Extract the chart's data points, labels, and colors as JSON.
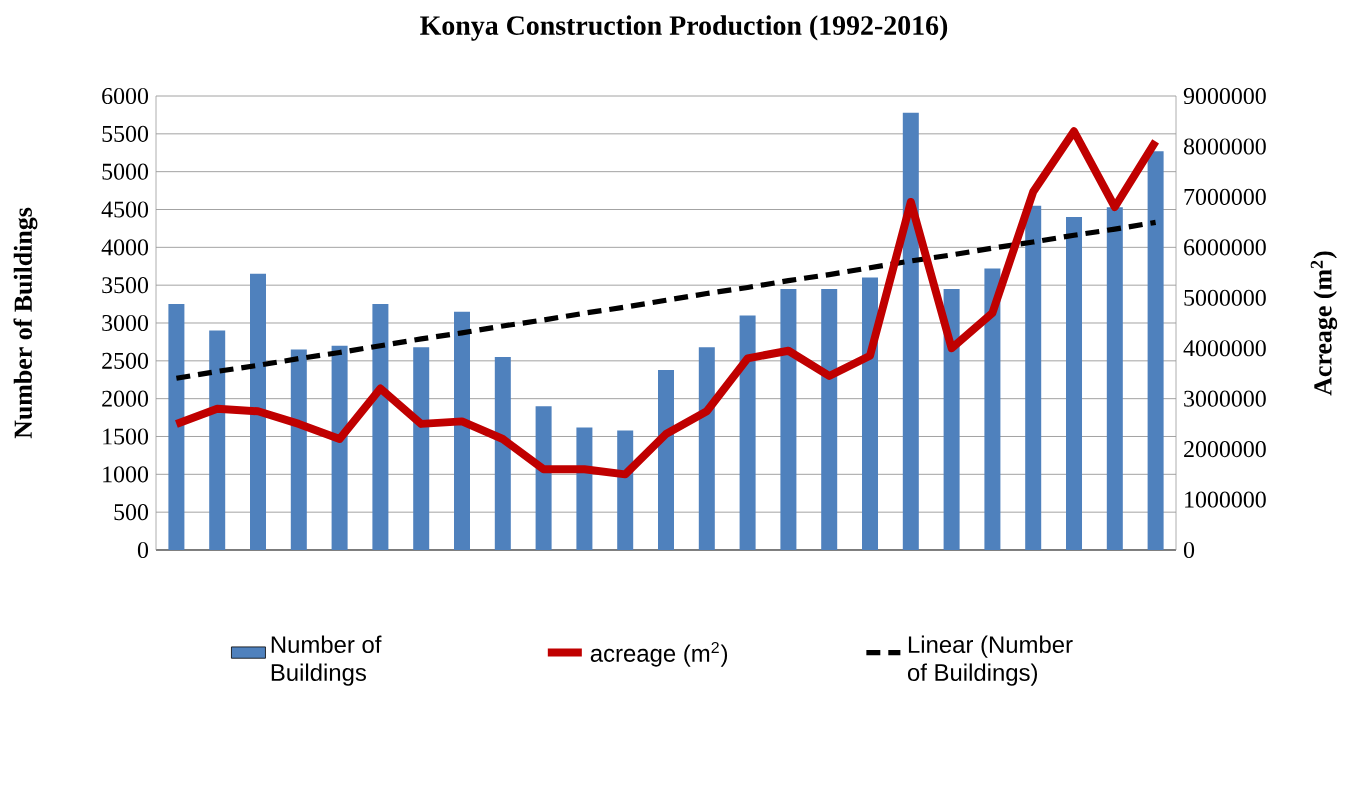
{
  "chart_data": {
    "type": "bar",
    "title": "Konya Construction Production  (1992-2016)",
    "ylabel": "Number of Buildings",
    "y2label": "Acreage (m$^{2}$)",
    "categories": [
      null,
      null,
      null,
      null,
      null,
      null,
      null,
      null,
      null,
      null,
      null,
      null,
      null,
      null,
      null,
      null,
      null,
      null,
      null,
      null,
      null,
      null,
      null,
      null,
      null
    ],
    "series": [
      {
        "name": "Number of Buildings",
        "color": "#4f81bd",
        "values": [
          3250,
          2900,
          3650,
          2650,
          2700,
          3250,
          2680,
          3150,
          2550,
          1900,
          1620,
          1580,
          2380,
          2680,
          3100,
          3450,
          3450,
          3600,
          5780,
          3450,
          3720,
          4550,
          4400,
          4530,
          5270
        ]
      },
      {
        "name": "acreage (m$^{2}$)",
        "type": "line",
        "axis": "y2",
        "color": "#c00000",
        "values": [
          2500000,
          2800000,
          2750000,
          2500000,
          2200000,
          3200000,
          2500000,
          2550000,
          2200000,
          1600000,
          1600000,
          1500000,
          2300000,
          2750000,
          3800000,
          3950000,
          3450000,
          3850000,
          6900000,
          4000000,
          4700000,
          7100000,
          8300000,
          6800000,
          8100000
        ]
      },
      {
        "name": "Linear (Number of Buildings)",
        "type": "line",
        "line_style": "dashed",
        "color": "#000000",
        "values": [
          2270,
          2360,
          2440,
          2530,
          2610,
          2700,
          2790,
          2870,
          2960,
          3040,
          3130,
          3210,
          3300,
          3390,
          3470,
          3560,
          3640,
          3730,
          3820,
          3900,
          3990,
          4070,
          4160,
          4240,
          4330
        ]
      }
    ],
    "ylim": [
      0,
      6000
    ],
    "yticks": [
      0,
      500,
      1000,
      1500,
      2000,
      2500,
      3000,
      3500,
      4000,
      4500,
      5000,
      5500,
      6000
    ],
    "y2lim": [
      0,
      9000000
    ],
    "y2ticks": [
      0,
      1000000,
      2000000,
      3000000,
      4000000,
      5000000,
      6000000,
      7000000,
      8000000,
      9000000
    ],
    "grid": "y",
    "legend": "bottom"
  }
}
